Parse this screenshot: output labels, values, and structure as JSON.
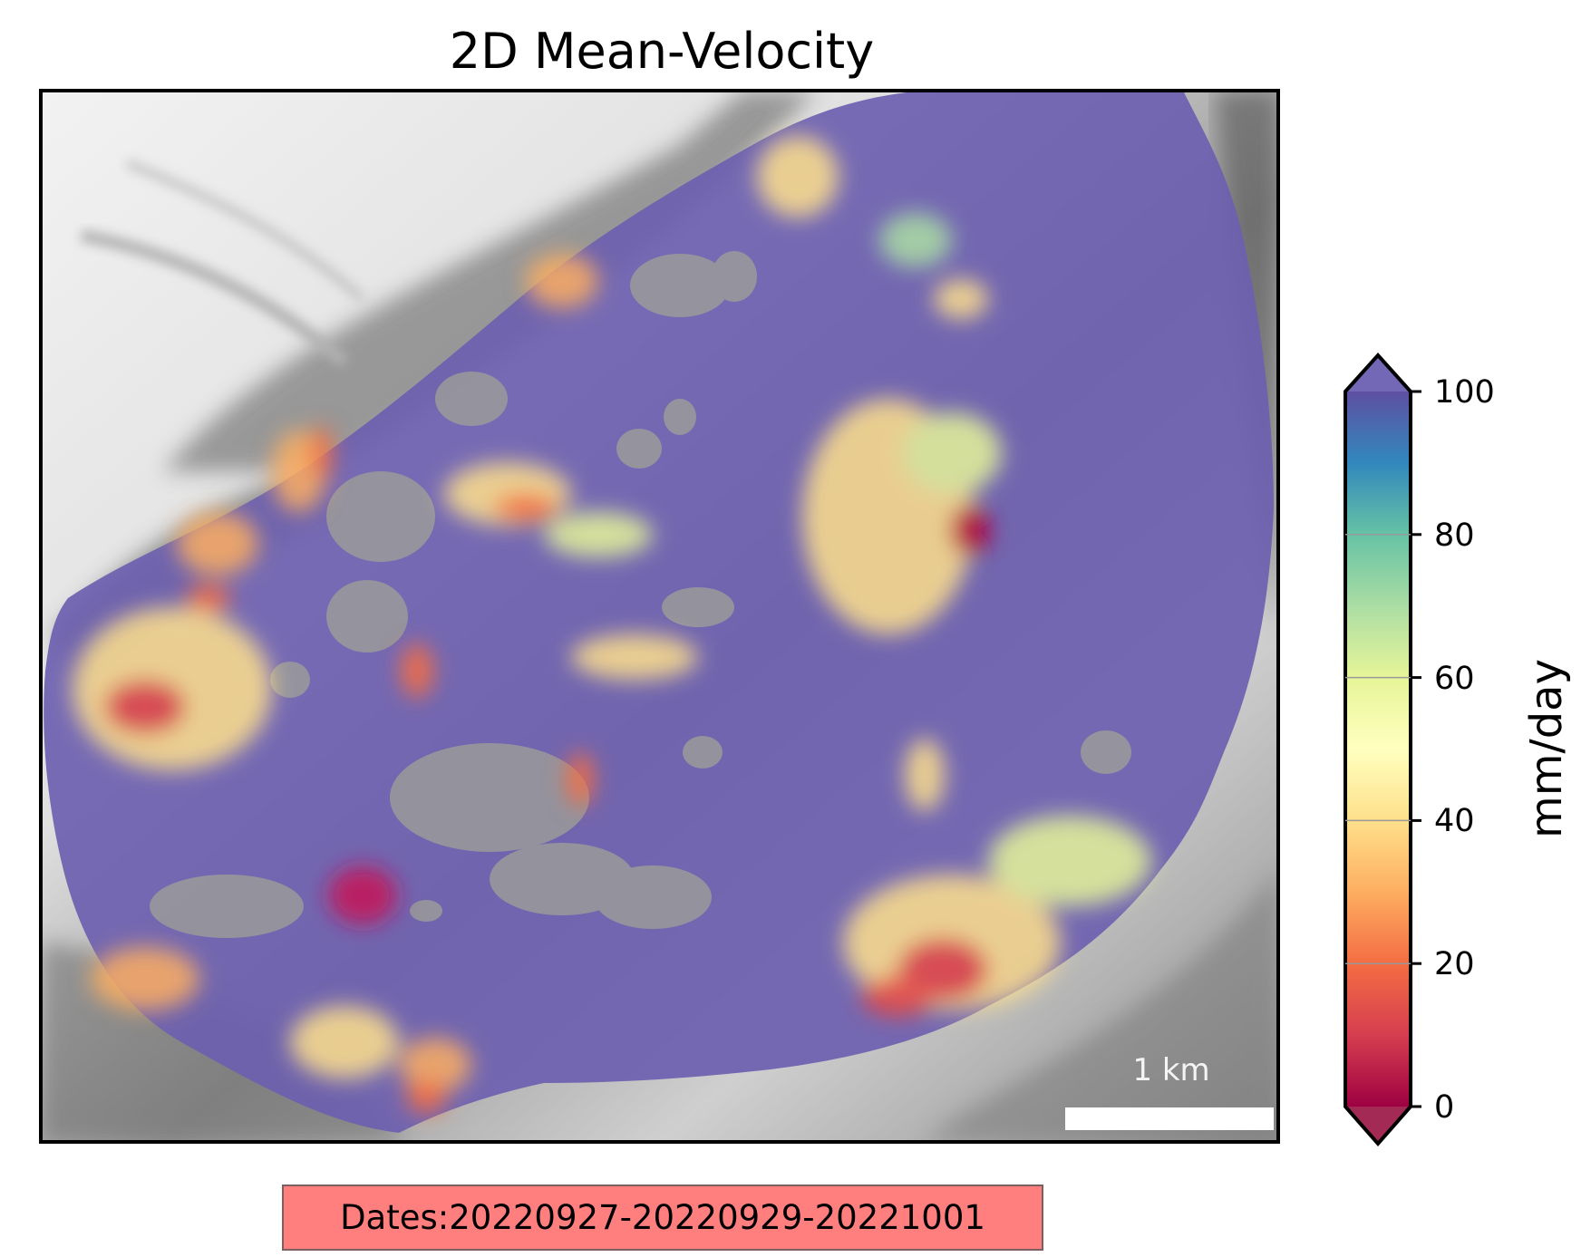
{
  "figure": {
    "title": "2D Mean-Velocity",
    "dates_label": "Dates:20220927-20220929-20221001",
    "scale_bar_label": "1 km"
  },
  "colorbar": {
    "label": "mm/day",
    "min": 0,
    "max": 100,
    "ticks": [
      "0",
      "20",
      "40",
      "60",
      "80",
      "100"
    ],
    "colormap": "Spectral",
    "extend": "both",
    "stops": [
      "#9e0142",
      "#d53e4f",
      "#f46d43",
      "#fdae61",
      "#fee08b",
      "#ffffbf",
      "#e6f598",
      "#abdda4",
      "#66c2a5",
      "#3288bd",
      "#5e4fa2"
    ]
  },
  "map": {
    "background": "grey hillshade terrain",
    "overlay_dominant_value": 100,
    "overlay_color": "#5e4fa2"
  }
}
